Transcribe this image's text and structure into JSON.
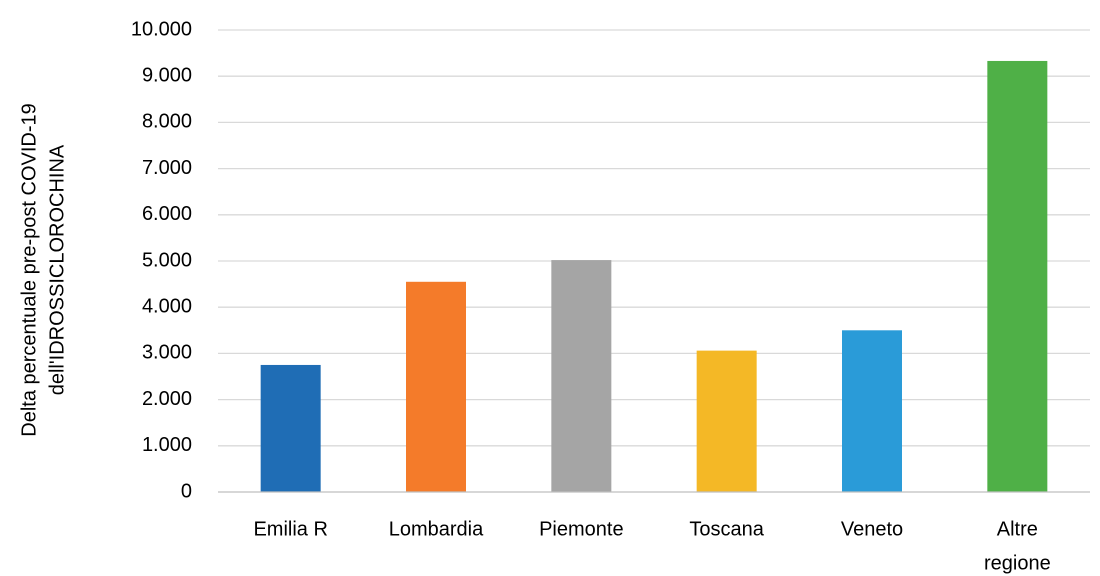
{
  "chart_data": {
    "type": "bar",
    "ylabel_lines": [
      "Delta percentuale pre-post COVID-19",
      "dell'IDROSSICLOROCHINA"
    ],
    "xlabel": "",
    "categories": [
      [
        "Emilia R"
      ],
      [
        "Lombardia"
      ],
      [
        "Piemonte"
      ],
      [
        "Toscana"
      ],
      [
        "Veneto"
      ],
      [
        "Altre",
        "regione"
      ]
    ],
    "values": [
      2750,
      4550,
      5020,
      3060,
      3500,
      9330
    ],
    "colors": [
      "#1f6db5",
      "#f47b2a",
      "#a5a5a5",
      "#f4b826",
      "#2a9bd8",
      "#4fb047"
    ],
    "ylim": [
      0,
      10000
    ],
    "yticks": [
      0,
      1000,
      2000,
      3000,
      4000,
      5000,
      6000,
      7000,
      8000,
      9000,
      10000
    ],
    "ytick_labels": [
      "0",
      "1.000",
      "2.000",
      "3.000",
      "4.000",
      "5.000",
      "6.000",
      "7.000",
      "8.000",
      "9.000",
      "10.000"
    ],
    "grid": true,
    "legend": false
  }
}
